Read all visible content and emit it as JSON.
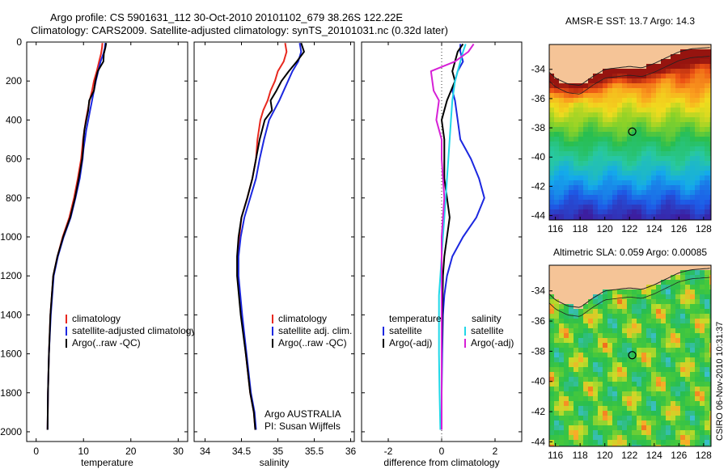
{
  "header": {
    "line1": "Argo profile: CS 5901631_112 30-Oct-2010 20101102_679 38.26S 122.22E",
    "line2": "Climatology: CARS2009. Satellite-adjusted climatology: synTS_20101031.nc (0.32d later)"
  },
  "side_stamp": "CSIRO 06-Nov-2010 10:31:37",
  "colors": {
    "climatology": "#e8281e",
    "satellite": "#1c28e0",
    "argo": "#000000",
    "salinity_satellite": "#21d6e8",
    "salinity_argo": "#d620d6",
    "land": "#f5c497"
  },
  "chart_data": [
    {
      "type": "line",
      "panel": "temperature",
      "xlabel": "temperature",
      "ylabel": "",
      "xlim": [
        -2,
        32
      ],
      "ylim": [
        2050,
        0
      ],
      "xticks": [
        "0",
        "10",
        "20",
        "30"
      ],
      "yticks": [
        "0",
        "200",
        "400",
        "600",
        "800",
        "1000",
        "1200",
        "1400",
        "1600",
        "1800",
        "2000"
      ],
      "legend": [
        "climatology",
        "satellite-adjusted climatology",
        "Argo(..raw -QC)"
      ],
      "series": [
        {
          "name": "climatology",
          "x": [
            14.0,
            13.9,
            13.7,
            13.3,
            12.8,
            12.2,
            11.8,
            11.3,
            10.9,
            10.5,
            10.2,
            9.9,
            9.7,
            9.5,
            8.8,
            8.0,
            7.0,
            5.6,
            4.5,
            3.6,
            3.0,
            2.7,
            2.5,
            2.4
          ],
          "y": [
            5,
            30,
            60,
            100,
            150,
            200,
            250,
            300,
            350,
            400,
            450,
            500,
            550,
            600,
            700,
            800,
            900,
            1000,
            1100,
            1200,
            1400,
            1600,
            1800,
            1990
          ]
        },
        {
          "name": "satellite-adjusted climatology",
          "x": [
            14.6,
            14.5,
            14.2,
            13.6,
            13.1,
            12.6,
            12.2,
            11.8,
            11.4,
            11.0,
            10.6,
            10.3,
            10.0,
            9.8,
            9.2,
            8.3,
            7.3,
            5.8,
            4.6,
            3.7,
            3.1,
            2.7,
            2.5,
            2.4
          ],
          "y": [
            5,
            30,
            60,
            100,
            150,
            200,
            250,
            300,
            350,
            400,
            450,
            500,
            550,
            600,
            700,
            800,
            900,
            1000,
            1100,
            1200,
            1400,
            1600,
            1800,
            1990
          ]
        },
        {
          "name": "Argo(..raw -QC)",
          "x": [
            14.8,
            14.6,
            14.3,
            14.2,
            13.0,
            12.5,
            12.2,
            11.2,
            11.0,
            10.6,
            10.2,
            10.0,
            9.9,
            9.7,
            9.0,
            8.2,
            7.2,
            5.7,
            4.5,
            3.6,
            3.0,
            2.7,
            2.5,
            2.4
          ],
          "y": [
            5,
            30,
            60,
            100,
            150,
            200,
            250,
            300,
            350,
            400,
            450,
            500,
            550,
            600,
            700,
            800,
            900,
            1000,
            1100,
            1200,
            1400,
            1600,
            1800,
            1990
          ]
        }
      ]
    },
    {
      "type": "line",
      "panel": "salinity",
      "xlabel": "salinity",
      "ylabel": "",
      "xlim": [
        33.85,
        36.05
      ],
      "ylim": [
        2050,
        0
      ],
      "xticks": [
        "34",
        "34.5",
        "35",
        "35.5",
        "36"
      ],
      "legend": [
        "climatology",
        "satellite adj. clim.",
        "Argo(..raw -QC)"
      ],
      "annotation": [
        "Argo AUSTRALIA",
        "PI: Susan Wijffels"
      ],
      "series": [
        {
          "name": "climatology",
          "x": [
            35.1,
            35.12,
            35.08,
            35.0,
            34.96,
            34.9,
            34.86,
            34.8,
            34.76,
            34.72,
            34.7,
            34.65,
            34.58,
            34.5,
            34.47,
            34.45,
            34.45,
            34.5,
            34.56,
            34.62,
            34.67,
            34.69
          ],
          "y": [
            5,
            50,
            100,
            150,
            200,
            250,
            300,
            350,
            400,
            500,
            600,
            700,
            800,
            900,
            1000,
            1100,
            1200,
            1400,
            1600,
            1800,
            1900,
            1990
          ]
        },
        {
          "name": "satellite adj. clim.",
          "x": [
            35.3,
            35.32,
            35.28,
            35.2,
            35.14,
            35.08,
            35.02,
            34.95,
            34.88,
            34.81,
            34.75,
            34.7,
            34.62,
            34.54,
            34.49,
            34.46,
            34.46,
            34.51,
            34.57,
            34.63,
            34.68,
            34.7
          ],
          "y": [
            5,
            50,
            100,
            150,
            200,
            250,
            300,
            350,
            400,
            500,
            600,
            700,
            800,
            900,
            1000,
            1100,
            1200,
            1400,
            1600,
            1800,
            1900,
            1990
          ]
        },
        {
          "name": "Argo(..raw -QC)",
          "x": [
            35.32,
            35.36,
            35.26,
            35.15,
            35.05,
            34.98,
            34.9,
            34.92,
            34.82,
            34.75,
            34.7,
            34.65,
            34.58,
            34.5,
            34.46,
            34.44,
            34.44,
            34.49,
            34.56,
            34.62,
            34.67,
            34.69
          ],
          "y": [
            5,
            50,
            100,
            150,
            200,
            250,
            300,
            350,
            400,
            500,
            600,
            700,
            800,
            900,
            1000,
            1100,
            1200,
            1400,
            1600,
            1800,
            1900,
            1990
          ]
        }
      ]
    },
    {
      "type": "line",
      "panel": "difference",
      "xlabel": "difference from climatology",
      "ylabel": "",
      "xlim": [
        -3,
        3
      ],
      "ylim": [
        2050,
        0
      ],
      "xticks": [
        "-2",
        "0",
        "2"
      ],
      "legend": [
        "temperature",
        "satellite",
        "Argo(-adj)",
        "salinity",
        "satellite",
        "Argo(-adj)"
      ],
      "series": [
        {
          "name": "temperature satellite",
          "x": [
            0.7,
            0.7,
            0.8,
            0.6,
            0.5,
            0.4,
            0.5,
            0.6,
            0.7,
            0.9,
            1.1,
            1.4,
            1.6,
            1.3,
            0.8,
            0.4,
            0.2,
            0.1,
            0.05,
            0.02,
            0.0,
            0.0
          ],
          "y": [
            10,
            50,
            100,
            150,
            200,
            250,
            300,
            400,
            500,
            550,
            600,
            700,
            800,
            900,
            1000,
            1100,
            1200,
            1300,
            1400,
            1600,
            1800,
            1990
          ]
        },
        {
          "name": "temperature Argo(-adj)",
          "x": [
            0.8,
            0.6,
            0.5,
            0.4,
            0.5,
            0.2,
            0.1,
            0.0,
            0.1,
            0.1,
            0.1,
            0.2,
            0.3,
            0.2,
            0.1,
            0.05,
            0.02,
            0.0,
            0.0
          ],
          "y": [
            10,
            50,
            100,
            150,
            200,
            300,
            350,
            400,
            500,
            600,
            700,
            800,
            900,
            1000,
            1100,
            1200,
            1400,
            1600,
            1990
          ]
        },
        {
          "name": "salinity satellite",
          "x": [
            0.9,
            0.8,
            0.7,
            0.5,
            0.4,
            0.35,
            0.3,
            0.25,
            0.2,
            0.15,
            0.1,
            0.05,
            0.0,
            -0.05,
            -0.1,
            -0.1,
            -0.1,
            -0.08,
            -0.05
          ],
          "y": [
            10,
            50,
            100,
            200,
            300,
            400,
            500,
            600,
            700,
            800,
            900,
            1000,
            1100,
            1200,
            1300,
            1400,
            1600,
            1800,
            1990
          ]
        },
        {
          "name": "salinity Argo(-adj)",
          "x": [
            1.2,
            1.0,
            0.5,
            -0.4,
            -0.3,
            -0.1,
            -0.2,
            0.0,
            0.0,
            0.1,
            0.0,
            0.0,
            0.0
          ],
          "y": [
            10,
            50,
            100,
            150,
            250,
            300,
            400,
            500,
            600,
            800,
            1000,
            1300,
            1990
          ]
        }
      ]
    },
    {
      "type": "heatmap",
      "panel": "AMSR-E SST",
      "title": "AMSR-E SST: 13.7 Argo: 14.3",
      "xticks": [
        "116",
        "118",
        "120",
        "122",
        "124",
        "126",
        "128"
      ],
      "yticks": [
        "-34",
        "-36",
        "-38",
        "-40",
        "-42",
        "-44"
      ],
      "xlim": [
        115.5,
        128.6
      ],
      "ylim": [
        -44.3,
        -32.3
      ],
      "marker": {
        "lon": 122.22,
        "lat": -38.26
      }
    },
    {
      "type": "heatmap",
      "panel": "Altimetric SLA",
      "title": "Altimetric SLA: 0.059 Argo: 0.00085",
      "xticks": [
        "116",
        "118",
        "120",
        "122",
        "124",
        "126",
        "128"
      ],
      "yticks": [
        "-34",
        "-36",
        "-38",
        "-40",
        "-42",
        "-44"
      ],
      "xlim": [
        115.5,
        128.6
      ],
      "ylim": [
        -44.3,
        -32.3
      ],
      "marker": {
        "lon": 122.22,
        "lat": -38.26
      }
    }
  ]
}
